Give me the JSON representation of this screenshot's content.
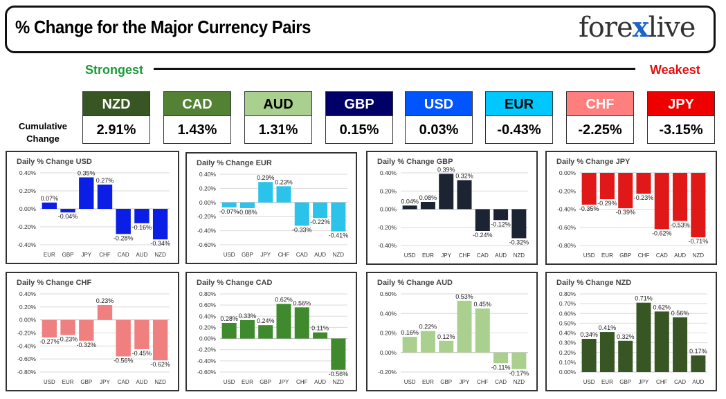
{
  "header": {
    "title": "% Change for the Major Currency Pairs",
    "logo_left": "fore",
    "logo_x": "x",
    "logo_right": "live",
    "strongest": "Strongest",
    "weakest": "Weakest",
    "cumulative_label": "Cumulative Change"
  },
  "colors": {
    "strongest": "#1a9a3a",
    "weakest": "#e01010",
    "logo_accent": "#1a63c8"
  },
  "rankings": [
    {
      "currency": "NZD",
      "value": "2.91%",
      "bg": "#375623",
      "fg": "#ffffff"
    },
    {
      "currency": "CAD",
      "value": "1.43%",
      "bg": "#548235",
      "fg": "#ffffff"
    },
    {
      "currency": "AUD",
      "value": "1.31%",
      "bg": "#a9d08e",
      "fg": "#000000"
    },
    {
      "currency": "GBP",
      "value": "0.15%",
      "bg": "#000066",
      "fg": "#ffffff"
    },
    {
      "currency": "USD",
      "value": "0.03%",
      "bg": "#0055ff",
      "fg": "#ffffff"
    },
    {
      "currency": "EUR",
      "value": "-0.43%",
      "bg": "#00c8ff",
      "fg": "#000000"
    },
    {
      "currency": "CHF",
      "value": "-2.25%",
      "bg": "#ff7f7f",
      "fg": "#ffffff"
    },
    {
      "currency": "JPY",
      "value": "-3.15%",
      "bg": "#ee0000",
      "fg": "#ffffff"
    }
  ],
  "chart_data": [
    {
      "type": "bar",
      "title": "Daily % Change USD",
      "categories": [
        "EUR",
        "GBP",
        "JPY",
        "CHF",
        "CAD",
        "AUD",
        "NZD"
      ],
      "values": [
        0.07,
        -0.04,
        0.35,
        0.27,
        -0.28,
        -0.16,
        -0.34
      ],
      "labels": [
        "0.07%",
        "-0.04%",
        "0.35%",
        "0.27%",
        "-0.28%",
        "-0.16%",
        "-0.34%"
      ],
      "yticks": [
        "0.40%",
        "0.20%",
        "0.00%",
        "-0.20%",
        "-0.40%"
      ],
      "ylim": [
        -0.4,
        0.4
      ],
      "color": "#0a1ee6",
      "grid": true
    },
    {
      "type": "bar",
      "title": "Daily % Change EUR",
      "categories": [
        "USD",
        "GBP",
        "JPY",
        "CHF",
        "CAD",
        "AUD",
        "NZD"
      ],
      "values": [
        -0.07,
        -0.08,
        0.29,
        0.23,
        -0.33,
        -0.22,
        -0.41
      ],
      "labels": [
        "-0.07%",
        "-0.08%",
        "0.29%",
        "0.23%",
        "-0.33%",
        "-0.22%",
        "-0.41%"
      ],
      "yticks": [
        "0.40%",
        "0.20%",
        "0.00%",
        "-0.20%",
        "-0.40%",
        "-0.60%"
      ],
      "ylim": [
        -0.6,
        0.4
      ],
      "color": "#2cc3ea",
      "grid": true
    },
    {
      "type": "bar",
      "title": "Daily % Change GBP",
      "categories": [
        "USD",
        "EUR",
        "JPY",
        "CHF",
        "CAD",
        "AUD",
        "NZD"
      ],
      "values": [
        0.04,
        0.08,
        0.39,
        0.32,
        -0.24,
        -0.12,
        -0.32
      ],
      "labels": [
        "0.04%",
        "0.08%",
        "0.39%",
        "0.32%",
        "-0.24%",
        "-0.12%",
        "-0.32%"
      ],
      "yticks": [
        "0.40%",
        "0.20%",
        "0.00%",
        "-0.20%",
        "-0.40%"
      ],
      "ylim": [
        -0.4,
        0.4
      ],
      "color": "#1c2333",
      "grid": true
    },
    {
      "type": "bar",
      "title": "Daily % Change JPY",
      "categories": [
        "USD",
        "EUR",
        "GBP",
        "CHF",
        "CAD",
        "AUD",
        "NZD"
      ],
      "values": [
        -0.35,
        -0.29,
        -0.39,
        -0.23,
        -0.62,
        -0.53,
        -0.71
      ],
      "labels": [
        "-0.35%",
        "-0.29%",
        "-0.39%",
        "-0.23%",
        "-0.62%",
        "-0.53%",
        "-0.71%"
      ],
      "yticks": [
        "0.00%",
        "-0.20%",
        "-0.40%",
        "-0.60%",
        "-0.80%"
      ],
      "ylim": [
        -0.8,
        0.0
      ],
      "color": "#e01818",
      "grid": true
    },
    {
      "type": "bar",
      "title": "Daily % Change CHF",
      "categories": [
        "USD",
        "EUR",
        "GBP",
        "JPY",
        "CAD",
        "AUD",
        "NZD"
      ],
      "values": [
        -0.27,
        -0.23,
        -0.32,
        0.23,
        -0.56,
        -0.45,
        -0.62
      ],
      "labels": [
        "-0.27%",
        "-0.23%",
        "-0.32%",
        "0.23%",
        "-0.56%",
        "-0.45%",
        "-0.62%"
      ],
      "yticks": [
        "0.40%",
        "0.20%",
        "0.00%",
        "-0.20%",
        "-0.40%",
        "-0.60%",
        "-0.80%"
      ],
      "ylim": [
        -0.8,
        0.4
      ],
      "color": "#f08080",
      "grid": true
    },
    {
      "type": "bar",
      "title": "Daily % Change CAD",
      "categories": [
        "USD",
        "EUR",
        "GBP",
        "JPY",
        "CHF",
        "AUD",
        "NZD"
      ],
      "values": [
        0.28,
        0.33,
        0.24,
        0.62,
        0.56,
        0.11,
        -0.56
      ],
      "labels": [
        "0.28%",
        "0.33%",
        "0.24%",
        "0.62%",
        "0.56%",
        "0.11%",
        "-0.56%"
      ],
      "yticks": [
        "0.80%",
        "0.60%",
        "0.40%",
        "0.20%",
        "0.00%",
        "-0.20%",
        "-0.40%",
        "-0.60%"
      ],
      "ylim": [
        -0.6,
        0.8
      ],
      "color": "#3e8a2c",
      "grid": true
    },
    {
      "type": "bar",
      "title": "Daily % Change AUD",
      "categories": [
        "USD",
        "EUR",
        "GBP",
        "JPY",
        "CHF",
        "CAD",
        "NZD"
      ],
      "values": [
        0.16,
        0.22,
        0.12,
        0.53,
        0.45,
        -0.11,
        -0.17
      ],
      "labels": [
        "0.16%",
        "0.22%",
        "0.12%",
        "0.53%",
        "0.45%",
        "-0.11%",
        "-0.17%"
      ],
      "yticks": [
        "0.60%",
        "0.40%",
        "0.20%",
        "0.00%",
        "-0.20%"
      ],
      "ylim": [
        -0.2,
        0.6
      ],
      "color": "#a9d08e",
      "grid": true
    },
    {
      "type": "bar",
      "title": "Daily % Change NZD",
      "categories": [
        "USD",
        "EUR",
        "GBP",
        "JPY",
        "CHF",
        "CAD",
        "AUD"
      ],
      "values": [
        0.34,
        0.41,
        0.32,
        0.71,
        0.62,
        0.56,
        0.17
      ],
      "labels": [
        "0.34%",
        "0.41%",
        "0.32%",
        "0.71%",
        "0.62%",
        "0.56%",
        "0.17%"
      ],
      "yticks": [
        "0.80%",
        "0.70%",
        "0.60%",
        "0.50%",
        "0.40%",
        "0.30%",
        "0.20%",
        "0.10%",
        "0.00%"
      ],
      "ylim": [
        0.0,
        0.8
      ],
      "color": "#375623",
      "grid": true
    }
  ]
}
